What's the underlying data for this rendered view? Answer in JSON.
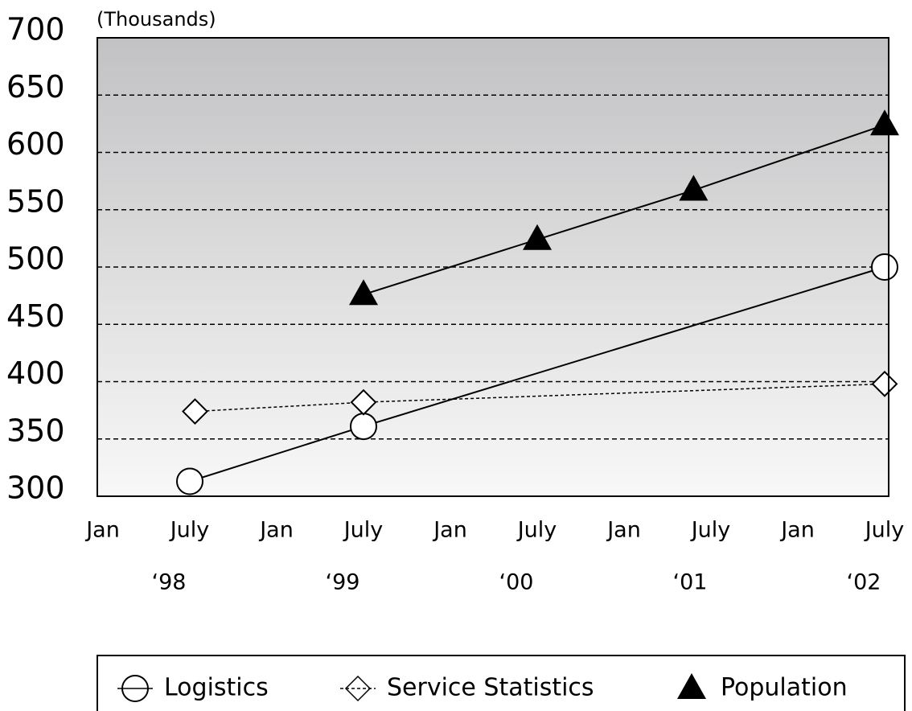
{
  "chart_data": {
    "type": "line",
    "y_unit_label": "(Thousands)",
    "xlim": [
      1998,
      2002.5
    ],
    "xticks": [
      {
        "value": 1998,
        "label": "Jan"
      },
      {
        "value": 1998.5,
        "label": "July"
      },
      {
        "value": 1999,
        "label": "Jan"
      },
      {
        "value": 1999.5,
        "label": "July"
      },
      {
        "value": 2000,
        "label": "Jan"
      },
      {
        "value": 2000.5,
        "label": "July"
      },
      {
        "value": 2001,
        "label": "Jan"
      },
      {
        "value": 2001.5,
        "label": "July"
      },
      {
        "value": 2002,
        "label": "Jan"
      },
      {
        "value": 2002.5,
        "label": "July"
      }
    ],
    "year_labels": [
      "‘98",
      "‘99",
      "‘00",
      "‘01",
      "‘02"
    ],
    "ylim": [
      300,
      700
    ],
    "yticks": [
      300,
      350,
      400,
      450,
      500,
      550,
      600,
      650,
      700
    ],
    "grid": true,
    "series": [
      {
        "name": "Logistics",
        "color": "#000000",
        "marker": "circle",
        "line": "solid",
        "x": [
          1998.5,
          1999.5,
          2002.5
        ],
        "values": [
          313,
          361,
          500
        ]
      },
      {
        "name": "Service Statistics",
        "color": "#000000",
        "marker": "diamond",
        "line": "dotted",
        "x": [
          1998.53,
          1999.5,
          2002.5
        ],
        "values": [
          374,
          382,
          398
        ]
      },
      {
        "name": "Population",
        "color": "#000000",
        "marker": "triangle",
        "line": "solid",
        "x": [
          1999.5,
          2000.5,
          2001.4,
          2002.5
        ],
        "values": [
          476,
          524,
          567,
          624
        ]
      }
    ]
  }
}
